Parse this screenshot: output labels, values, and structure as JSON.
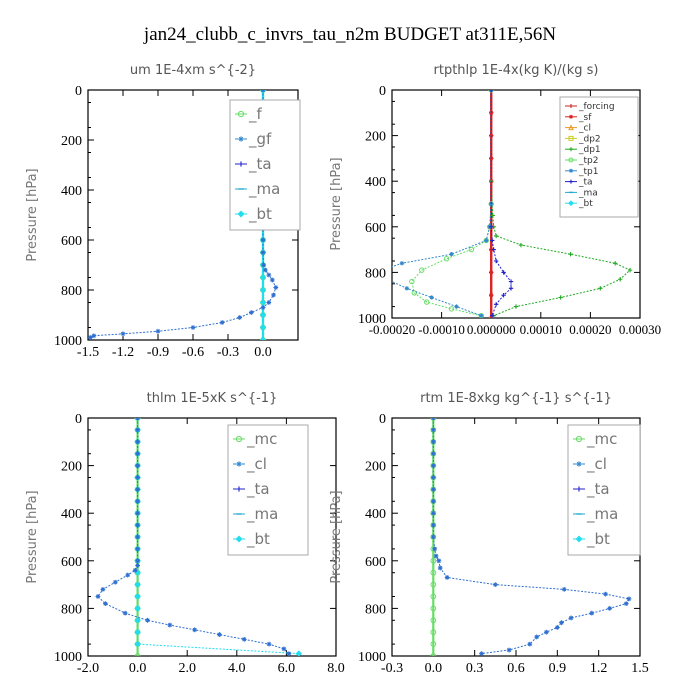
{
  "title": "jan24_clubb_c_invrs_tau_n2m  BUDGET at311E,56N",
  "chart_data": [
    {
      "type": "line",
      "title": "um   1E-4xm  s^{-2}",
      "ylabel": "Pressure [hPa]",
      "xlim": [
        -1.5,
        0.3
      ],
      "ylim": [
        1000,
        0
      ],
      "xticks": [
        "-1.5",
        "-1.2",
        "-0.9",
        "-0.6",
        "-0.3",
        "0.0"
      ],
      "yticks": [
        "0",
        "200",
        "400",
        "600",
        "800",
        "1000"
      ],
      "legend_position": "top-right",
      "series": [
        {
          "name": "_f",
          "color": "#66dd66",
          "marker": "circle",
          "x": [
            0,
            0,
            0,
            0,
            0,
            0,
            0,
            0,
            0,
            0,
            0,
            0,
            0,
            0,
            0,
            0,
            0,
            0,
            0,
            0,
            0
          ],
          "y": [
            0,
            50,
            100,
            150,
            200,
            250,
            300,
            350,
            400,
            450,
            500,
            550,
            600,
            650,
            700,
            750,
            800,
            850,
            900,
            950,
            1000
          ]
        },
        {
          "name": "_gf",
          "color": "#3388cc",
          "marker": "star",
          "x": [],
          "y": []
        },
        {
          "name": "_ta",
          "color": "#2222cc",
          "marker": "plus",
          "x": [],
          "y": []
        },
        {
          "name": "_ma",
          "color": "#22aacc",
          "marker": "dash",
          "x": [],
          "y": []
        },
        {
          "name": "_bt",
          "color": "#22ddee",
          "marker": "diamond",
          "x": [
            0,
            0,
            0,
            0,
            0,
            0,
            0,
            0,
            0,
            0,
            0,
            0,
            0,
            0,
            0,
            0,
            0,
            0,
            0,
            0,
            0
          ],
          "y": [
            0,
            50,
            100,
            150,
            200,
            250,
            300,
            350,
            400,
            450,
            500,
            550,
            600,
            650,
            700,
            750,
            800,
            850,
            900,
            950,
            1000
          ]
        },
        {
          "name": "",
          "color": "#2f6fd0",
          "marker": "star",
          "x": [
            0,
            0,
            0,
            0,
            0,
            0,
            0,
            0,
            0,
            0,
            0,
            0,
            0,
            0,
            0.005,
            0.02,
            0.05,
            0.08,
            0.11,
            0.09,
            0.05,
            0.0,
            -0.1,
            -0.2,
            -0.35,
            -0.6,
            -0.9,
            -1.2,
            -1.45,
            -1.48
          ],
          "y": [
            0,
            50,
            100,
            150,
            200,
            250,
            300,
            350,
            400,
            450,
            500,
            550,
            600,
            650,
            700,
            720,
            740,
            760,
            790,
            820,
            850,
            870,
            890,
            910,
            930,
            950,
            965,
            975,
            983,
            990
          ]
        }
      ]
    },
    {
      "type": "line",
      "title": "rtpthlp   1E-4x(kg K)/(kg s)",
      "ylabel": "Pressure [hPa]",
      "xlim": [
        -0.0002,
        0.0003
      ],
      "ylim": [
        1000,
        0
      ],
      "xticks": [
        "-0.00020",
        "-0.00010",
        "0.000000",
        "0.00010",
        "0.00020",
        "0.00030"
      ],
      "yticks": [
        "0",
        "200",
        "400",
        "600",
        "800",
        "1000"
      ],
      "legend_position": "top-right",
      "series": [
        {
          "name": "_forcing",
          "color": "#cc2222",
          "marker": "plus",
          "x": [
            0,
            0,
            0,
            0,
            0,
            0,
            0,
            0,
            0,
            0,
            0
          ],
          "y": [
            0,
            100,
            200,
            300,
            400,
            500,
            600,
            700,
            800,
            900,
            1000
          ]
        },
        {
          "name": "_sf",
          "color": "#dd2222",
          "marker": "star",
          "x": [
            0,
            0,
            0,
            0,
            0,
            0,
            0,
            0,
            0,
            0,
            0
          ],
          "y": [
            0,
            100,
            200,
            300,
            400,
            500,
            600,
            700,
            800,
            900,
            1000
          ]
        },
        {
          "name": "_cl",
          "color": "#ee9922",
          "marker": "triangle",
          "x": [],
          "y": []
        },
        {
          "name": "_dp2",
          "color": "#cccc22",
          "marker": "square",
          "x": [],
          "y": []
        },
        {
          "name": "_dp1",
          "color": "#22aa22",
          "marker": "plus",
          "x": [
            0,
            0,
            3e-06,
            5e-06,
            1e-05,
            6e-05,
            0.00016,
            0.00025,
            0.00028,
            0.00026,
            0.00022,
            0.00014,
            5e-05,
            5e-06
          ],
          "y": [
            0,
            400,
            550,
            600,
            640,
            680,
            720,
            760,
            790,
            830,
            870,
            910,
            950,
            990
          ]
        },
        {
          "name": "_tp2",
          "color": "#66dd66",
          "marker": "circle",
          "x": [
            0,
            0,
            -3e-06,
            -1e-05,
            -4e-05,
            -9e-05,
            -0.00014,
            -0.00016,
            -0.000155,
            -0.00013,
            -8e-05,
            -2e-05
          ],
          "y": [
            0,
            500,
            600,
            660,
            700,
            740,
            790,
            840,
            890,
            930,
            960,
            990
          ]
        },
        {
          "name": "_tp1",
          "color": "#3388cc",
          "marker": "star",
          "x": [
            0,
            0,
            -3e-06,
            -1e-05,
            -8e-05,
            -0.00018,
            -0.00022,
            -0.00021,
            -0.00017,
            -0.00012,
            -7e-05,
            -2e-05
          ],
          "y": [
            0,
            500,
            600,
            660,
            720,
            760,
            790,
            830,
            870,
            910,
            950,
            990
          ]
        },
        {
          "name": "_ta",
          "color": "#2222cc",
          "marker": "plus",
          "x": [
            0,
            0,
            2e-06,
            5e-06,
            1e-05,
            2.5e-05,
            4e-05,
            4e-05,
            2.5e-05,
            1e-05,
            2e-06
          ],
          "y": [
            0,
            600,
            660,
            700,
            750,
            800,
            840,
            870,
            900,
            940,
            990
          ]
        },
        {
          "name": "_ma",
          "color": "#22aacc",
          "marker": "dash",
          "x": [],
          "y": []
        },
        {
          "name": "_bt",
          "color": "#22ddee",
          "marker": "diamond",
          "x": [],
          "y": []
        }
      ]
    },
    {
      "type": "line",
      "title": "thlm   1E-5xK  s^{-1}",
      "ylabel": "Pressure [hPa]",
      "xlim": [
        -2.0,
        8.0
      ],
      "ylim": [
        1000,
        0
      ],
      "xticks": [
        "-2.0",
        "0.0",
        "2.0",
        "4.0",
        "6.0",
        "8.0"
      ],
      "yticks": [
        "0",
        "200",
        "400",
        "600",
        "800",
        "1000"
      ],
      "legend_position": "top-right",
      "series": [
        {
          "name": "_mc",
          "color": "#66dd66",
          "marker": "circle",
          "x": [
            0,
            0,
            0,
            0,
            0,
            0,
            0,
            0,
            0,
            0,
            0,
            0,
            0,
            0,
            0,
            0,
            0,
            0,
            0,
            0,
            0
          ],
          "y": [
            0,
            50,
            100,
            150,
            200,
            250,
            300,
            350,
            400,
            450,
            500,
            550,
            600,
            650,
            700,
            750,
            800,
            850,
            900,
            950,
            1000
          ]
        },
        {
          "name": "_cl",
          "color": "#3388cc",
          "marker": "star",
          "x": [],
          "y": []
        },
        {
          "name": "_ta",
          "color": "#2222cc",
          "marker": "plus",
          "x": [],
          "y": []
        },
        {
          "name": "_ma",
          "color": "#22aacc",
          "marker": "dash",
          "x": [],
          "y": []
        },
        {
          "name": "_bt",
          "color": "#22ddee",
          "marker": "diamond",
          "x": [
            0,
            0,
            0,
            0,
            0,
            0,
            0,
            0,
            0,
            0,
            0,
            0,
            0,
            0,
            0,
            0,
            0,
            0,
            0,
            0,
            6.5
          ],
          "y": [
            0,
            50,
            100,
            150,
            200,
            250,
            300,
            350,
            400,
            450,
            500,
            550,
            600,
            650,
            700,
            750,
            800,
            850,
            900,
            950,
            990
          ]
        },
        {
          "name": "",
          "color": "#2f6fd0",
          "marker": "star",
          "x": [
            0,
            0,
            0,
            0,
            0,
            0,
            0,
            0,
            0,
            0,
            0,
            0,
            0,
            0,
            -0.1,
            -0.4,
            -0.9,
            -1.4,
            -1.6,
            -1.3,
            -0.5,
            0.4,
            1.3,
            2.3,
            3.3,
            4.3,
            5.3,
            5.9,
            6.1
          ],
          "y": [
            0,
            50,
            100,
            150,
            200,
            250,
            300,
            350,
            400,
            450,
            500,
            550,
            600,
            620,
            640,
            660,
            690,
            720,
            750,
            780,
            820,
            850,
            870,
            890,
            910,
            930,
            950,
            970,
            990
          ]
        }
      ]
    },
    {
      "type": "line",
      "title": "rtm   1E-8xkg  kg^{-1}  s^{-1}",
      "ylabel": "Pressure [hPa]",
      "xlim": [
        -0.3,
        1.5
      ],
      "ylim": [
        1000,
        0
      ],
      "xticks": [
        "-0.3",
        "0.0",
        "0.3",
        "0.6",
        "0.9",
        "1.2",
        "1.5"
      ],
      "yticks": [
        "0",
        "200",
        "400",
        "600",
        "800",
        "1000"
      ],
      "legend_position": "top-right",
      "series": [
        {
          "name": "_mc",
          "color": "#66dd66",
          "marker": "circle",
          "x": [
            0,
            0,
            0,
            0,
            0,
            0,
            0,
            0,
            0,
            0,
            0,
            0,
            0,
            0,
            0,
            0,
            0,
            0,
            0,
            0,
            0
          ],
          "y": [
            0,
            50,
            100,
            150,
            200,
            250,
            300,
            350,
            400,
            450,
            500,
            550,
            600,
            650,
            700,
            750,
            800,
            850,
            900,
            950,
            1000
          ]
        },
        {
          "name": "_cl",
          "color": "#3388cc",
          "marker": "star",
          "x": [],
          "y": []
        },
        {
          "name": "_ta",
          "color": "#2222cc",
          "marker": "plus",
          "x": [],
          "y": []
        },
        {
          "name": "_ma",
          "color": "#22aacc",
          "marker": "dash",
          "x": [],
          "y": []
        },
        {
          "name": "_bt",
          "color": "#22ddee",
          "marker": "diamond",
          "x": [],
          "y": []
        },
        {
          "name": "",
          "color": "#2f6fd0",
          "marker": "star",
          "x": [
            0,
            0,
            0,
            0,
            0,
            0,
            0,
            0,
            0,
            0,
            0,
            0.01,
            0.02,
            0.04,
            0.05,
            0.1,
            0.45,
            0.95,
            1.25,
            1.42,
            1.4,
            1.28,
            1.15,
            1.0,
            0.93,
            0.9,
            0.82,
            0.75,
            0.7,
            0.55,
            0.35
          ],
          "y": [
            0,
            50,
            100,
            150,
            200,
            250,
            300,
            350,
            400,
            450,
            500,
            550,
            580,
            600,
            630,
            670,
            700,
            720,
            740,
            760,
            780,
            800,
            820,
            840,
            860,
            880,
            900,
            920,
            950,
            975,
            990
          ]
        }
      ]
    }
  ]
}
